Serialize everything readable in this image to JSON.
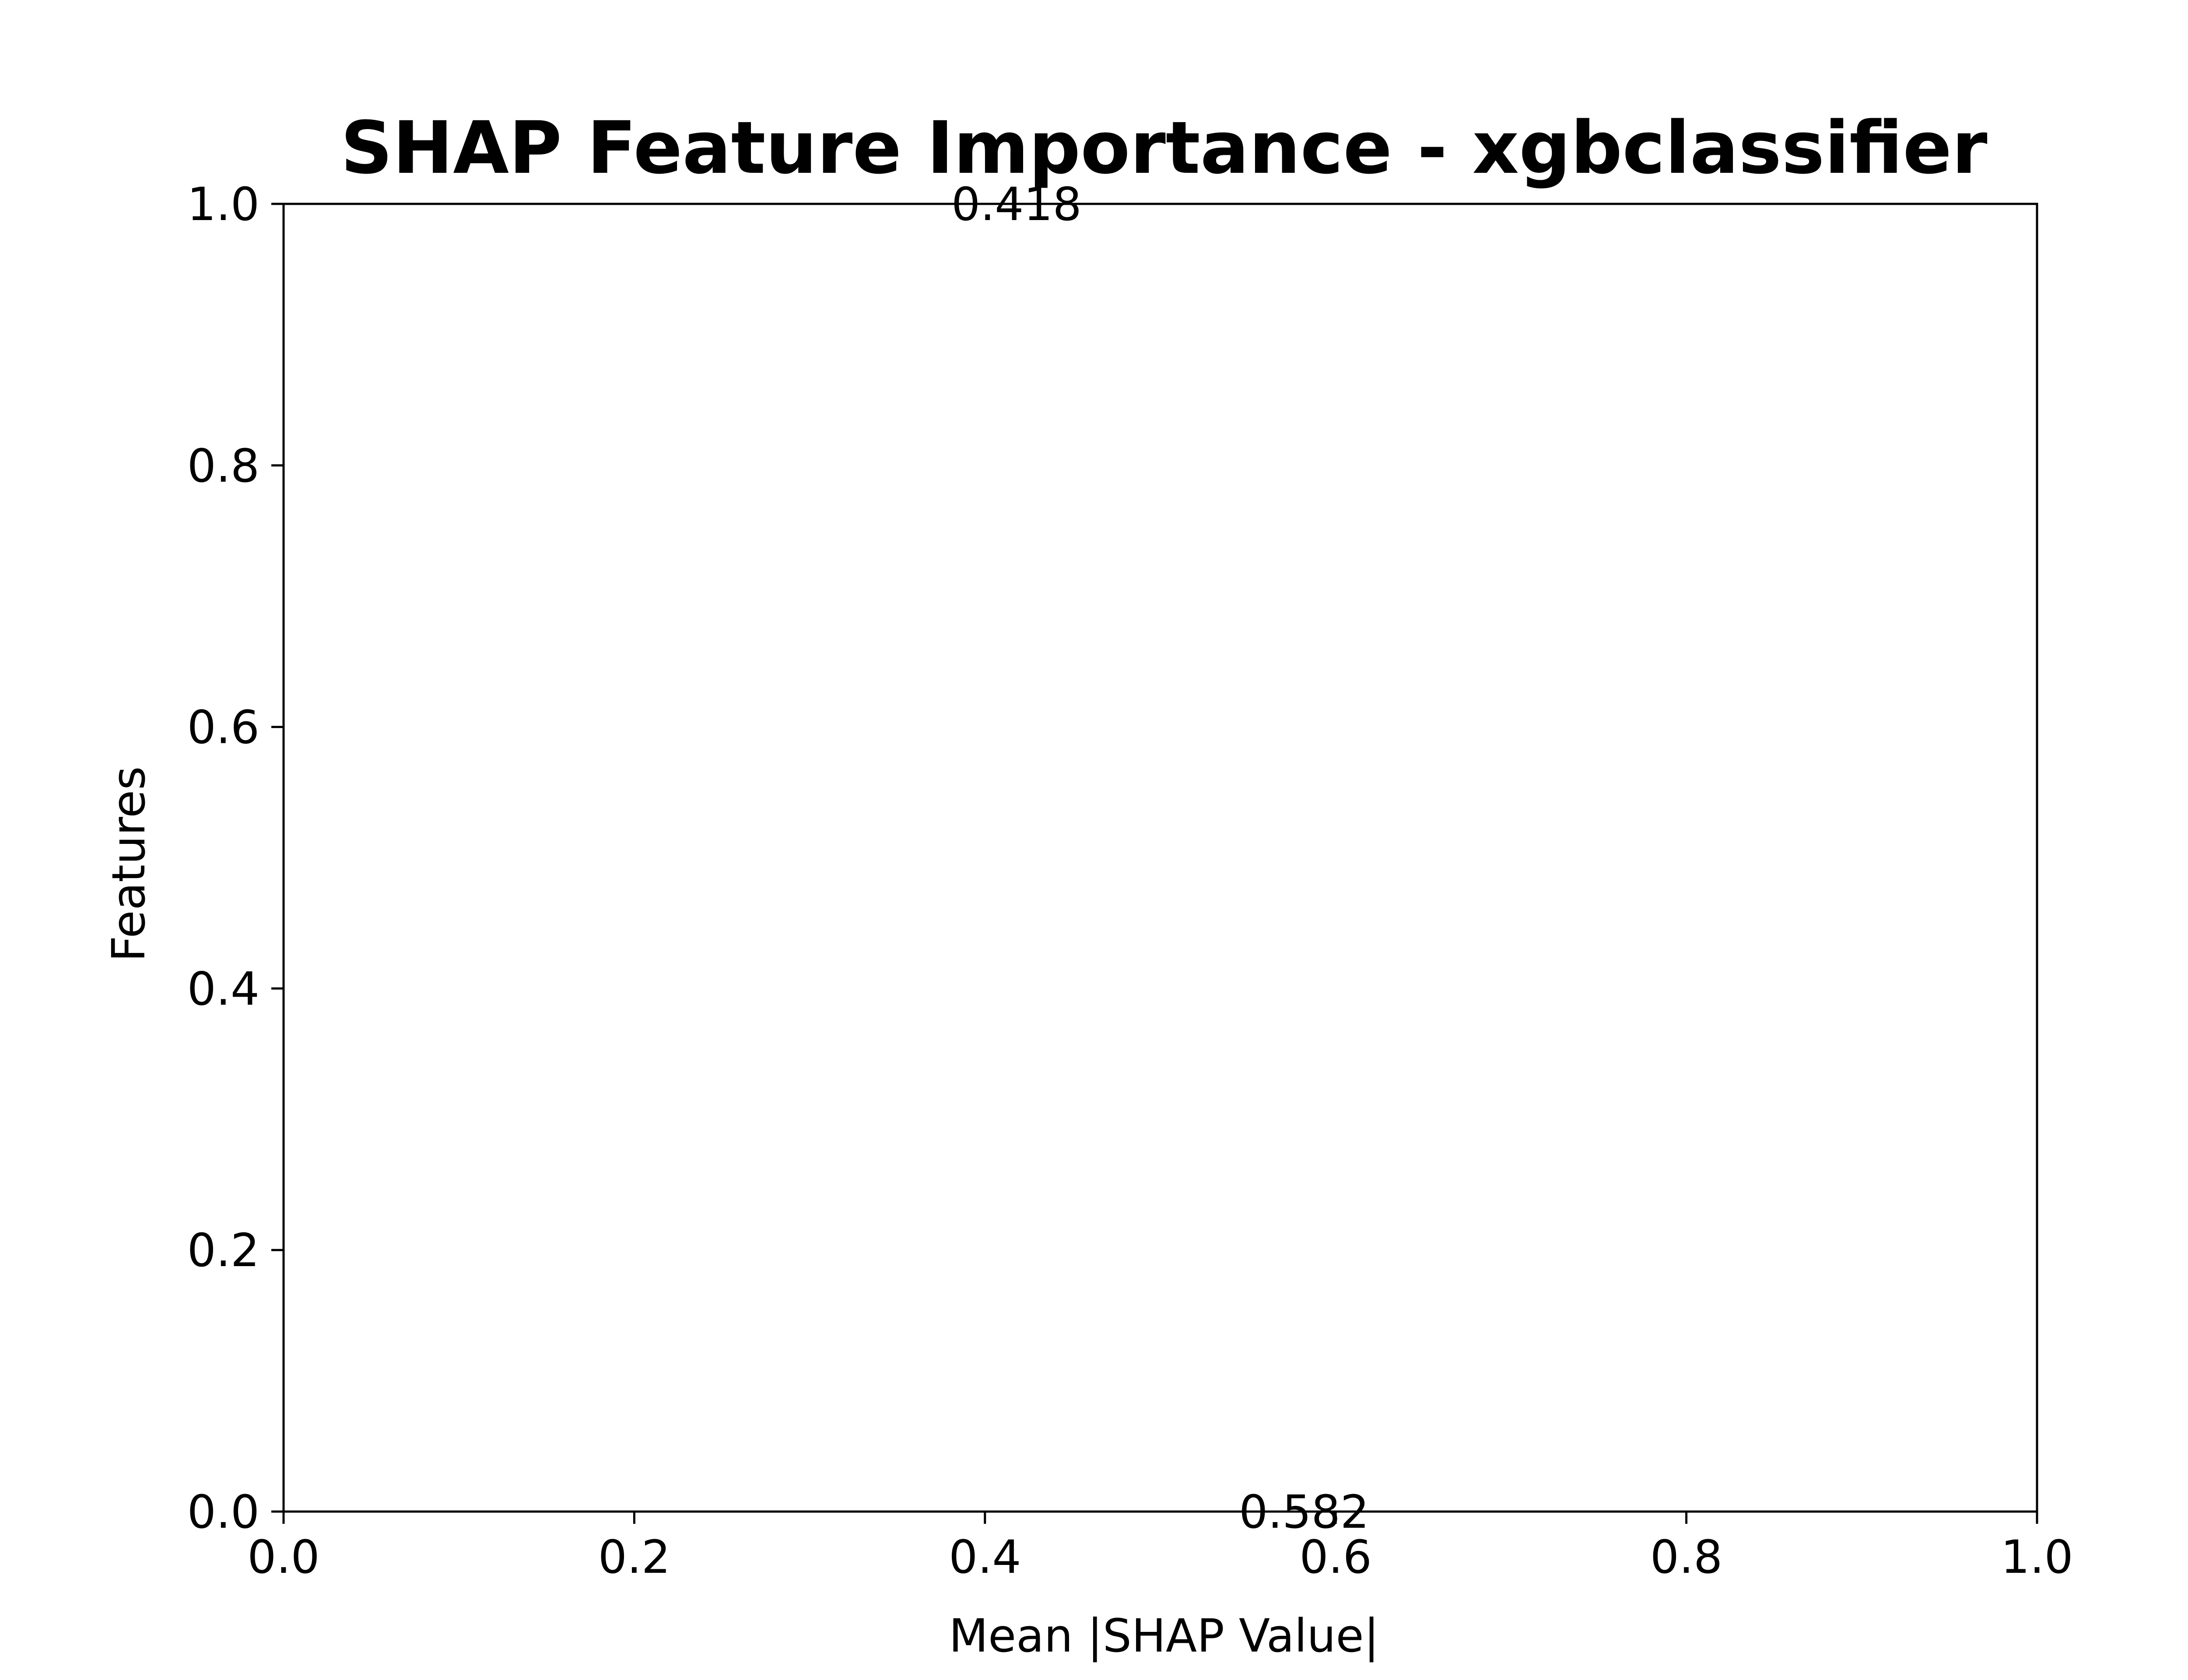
{
  "chart_data": {
    "type": "bar",
    "orientation": "horizontal",
    "title": "SHAP Feature Importance - xgbclassifier",
    "xlabel": "Mean |SHAP Value|",
    "ylabel": "Features",
    "xlim": [
      0.0,
      1.0
    ],
    "ylim": [
      0.0,
      1.0
    ],
    "x_ticks": [
      0.0,
      0.2,
      0.4,
      0.6,
      0.8,
      1.0
    ],
    "y_ticks": [
      0.0,
      0.2,
      0.4,
      0.6,
      0.8,
      1.0
    ],
    "x_tick_labels": [
      "0.0",
      "0.2",
      "0.4",
      "0.6",
      "0.8",
      "1.0"
    ],
    "y_tick_labels": [
      "0.0",
      "0.2",
      "0.4",
      "0.6",
      "0.8",
      "1.0"
    ],
    "grid": false,
    "legend": "none",
    "annotations": [
      {
        "text": "0.582",
        "x": 0.582,
        "y": 0.0
      },
      {
        "text": "0.418",
        "x": 0.418,
        "y": 1.0
      }
    ],
    "colors": {
      "frame": "#000000",
      "text": "#000000",
      "background": "#ffffff"
    }
  }
}
